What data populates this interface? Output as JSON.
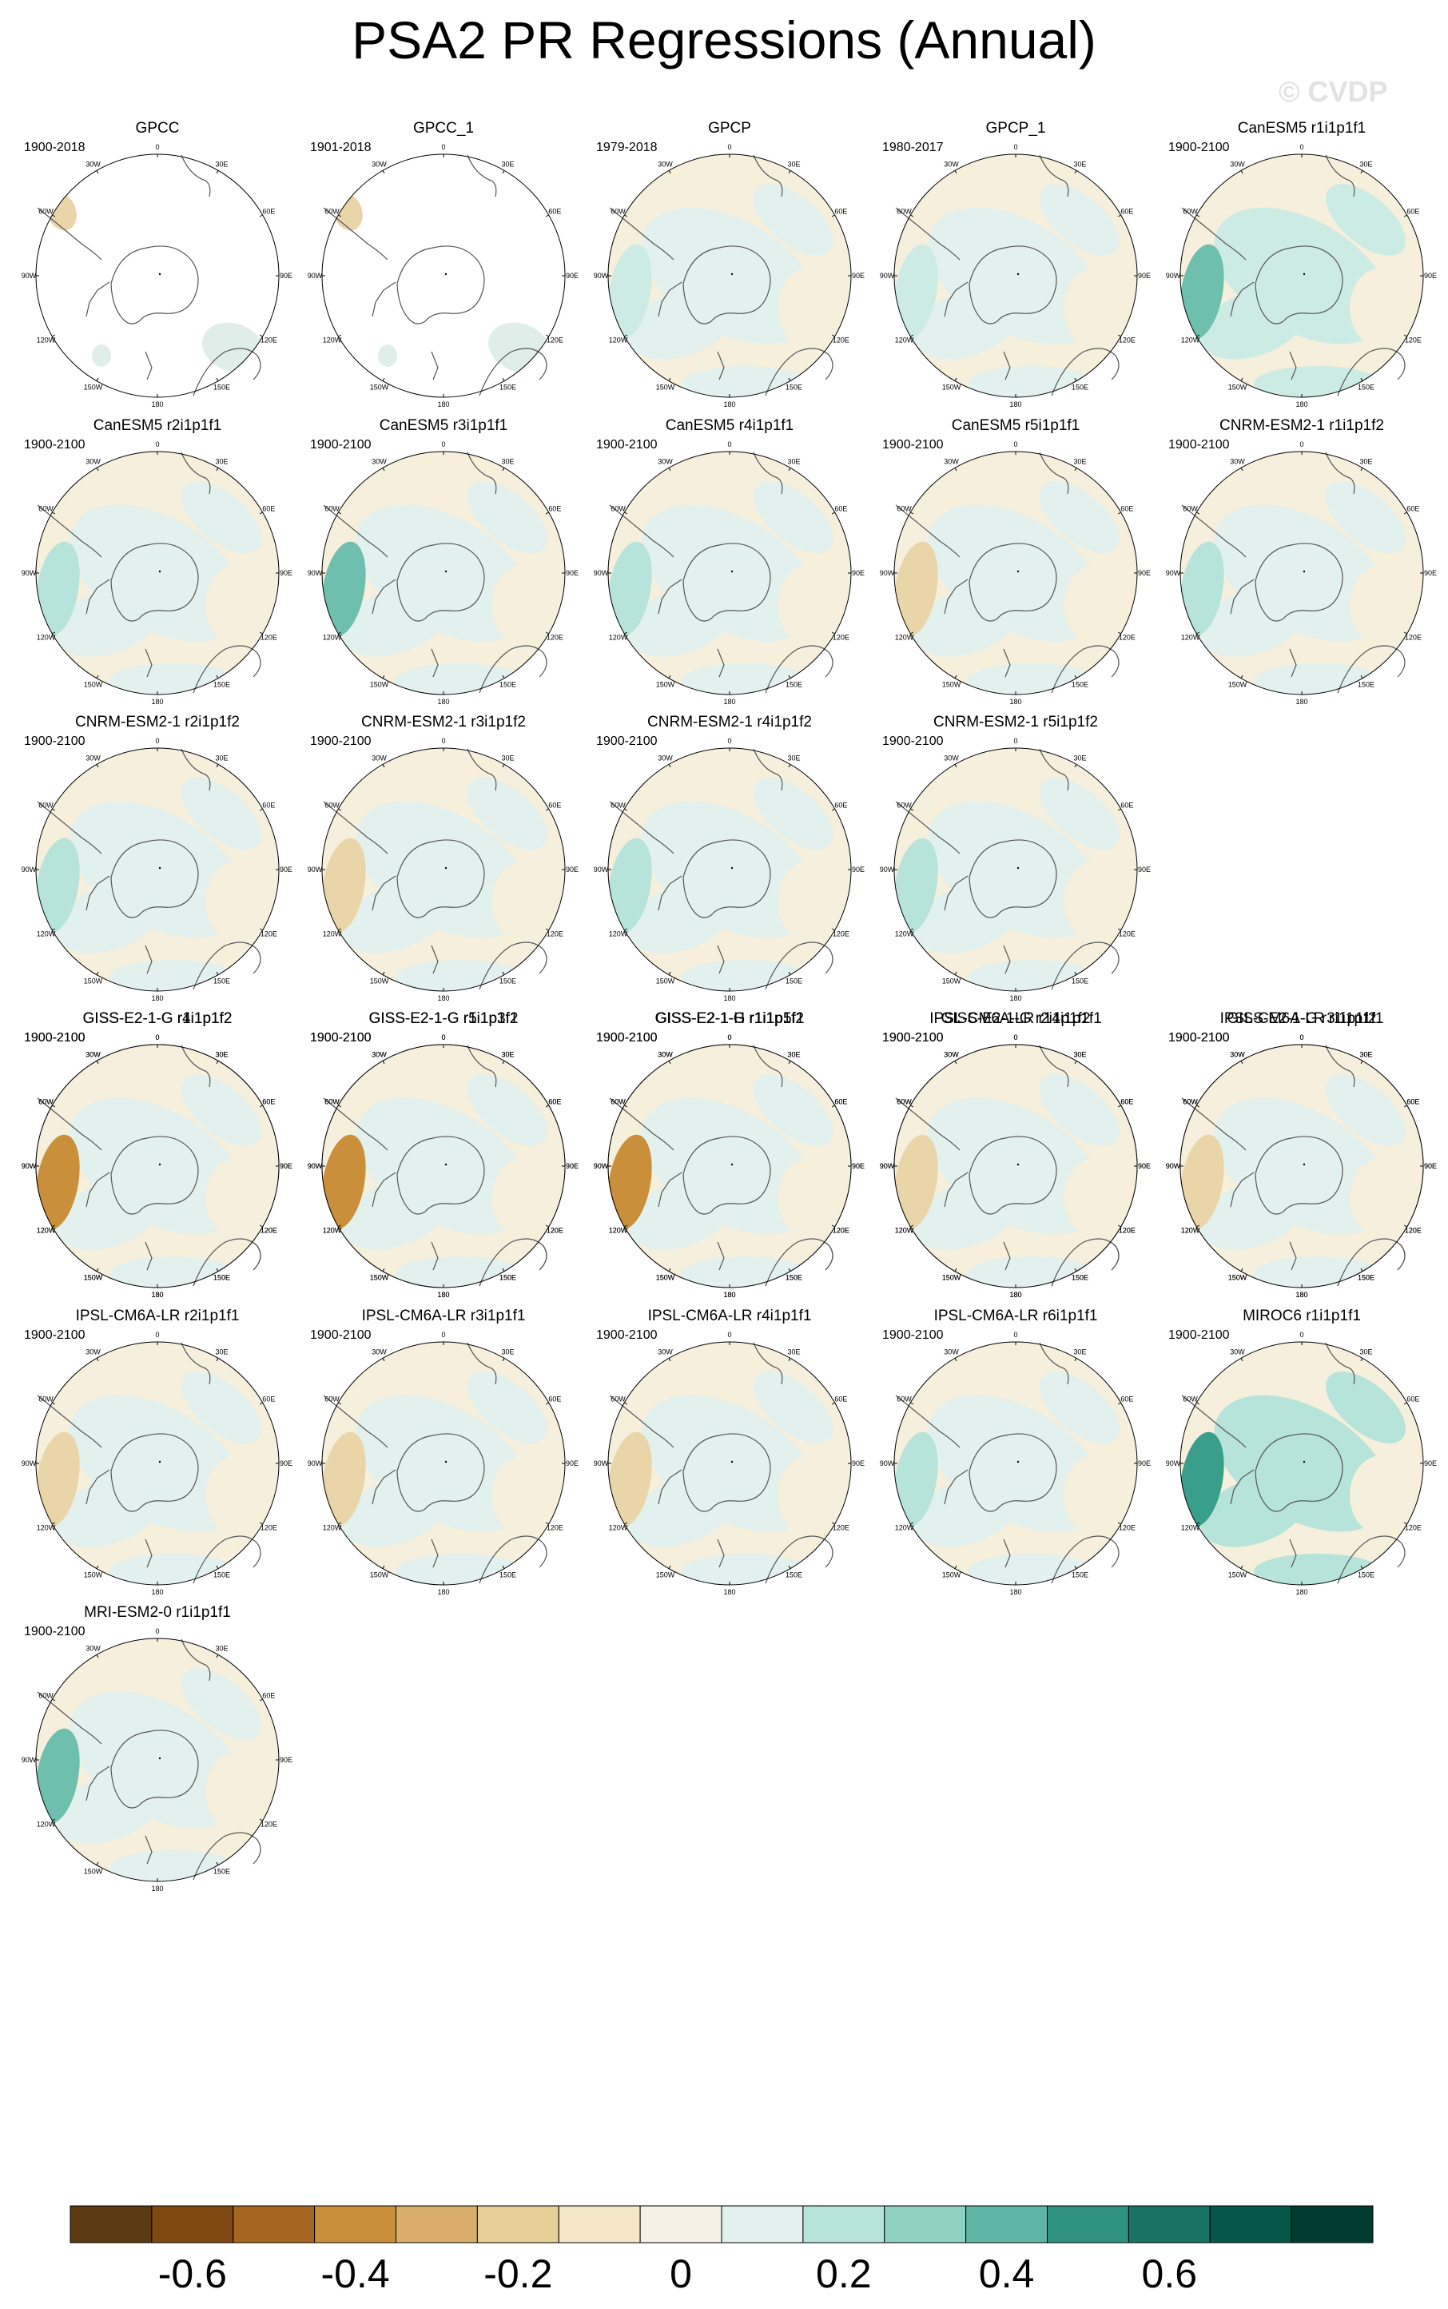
{
  "title": "PSA2 PR Regressions (Annual)",
  "watermark": "© CVDP",
  "lon_labels": [
    "0",
    "30E",
    "60E",
    "90E",
    "120E",
    "150E",
    "180",
    "150W",
    "120W",
    "90W",
    "60W",
    "30W"
  ],
  "panels": [
    {
      "title": "GPCC",
      "years": "1900-2018",
      "style": "gpcc",
      "palette": [
        "#f3eede",
        "#e9d5a8",
        "#dfeee9"
      ]
    },
    {
      "title": "GPCC_1",
      "years": "1901-2018",
      "style": "gpcc",
      "palette": [
        "#f3eede",
        "#e9d5a8",
        "#dfeee9"
      ]
    },
    {
      "title": "GPCP",
      "years": "1979-2018",
      "style": "full",
      "palette": [
        "#f5efdc",
        "#e2f0ee",
        "#cdebe5"
      ]
    },
    {
      "title": "GPCP_1",
      "years": "1980-2017",
      "style": "full",
      "palette": [
        "#f5efdc",
        "#e2f0ee",
        "#cdebe5"
      ]
    },
    {
      "title": "CanESM5 r1i1p1f1",
      "years": "1900-2100",
      "style": "full",
      "palette": [
        "#f5efdc",
        "#cdebe5",
        "#6fbfae"
      ]
    },
    {
      "title": "CanESM5 r2i1p1f1",
      "years": "1900-2100",
      "style": "full",
      "palette": [
        "#f5efdc",
        "#e2f0ee",
        "#b6e3da"
      ]
    },
    {
      "title": "CanESM5 r3i1p1f1",
      "years": "1900-2100",
      "style": "full",
      "palette": [
        "#f5efdc",
        "#e2f0ee",
        "#6fbfae"
      ]
    },
    {
      "title": "CanESM5 r4i1p1f1",
      "years": "1900-2100",
      "style": "full",
      "palette": [
        "#f5efdc",
        "#e2f0ee",
        "#b6e3da"
      ]
    },
    {
      "title": "CanESM5 r5i1p1f1",
      "years": "1900-2100",
      "style": "full",
      "palette": [
        "#f5efdc",
        "#e2f0ee",
        "#e9d5a8"
      ]
    },
    {
      "title": "CNRM-ESM2-1 r1i1p1f2",
      "years": "1900-2100",
      "style": "full",
      "palette": [
        "#f5efdc",
        "#e2f0ee",
        "#b6e3da"
      ]
    },
    {
      "title": "CNRM-ESM2-1 r2i1p1f2",
      "years": "1900-2100",
      "style": "full",
      "palette": [
        "#f5efdc",
        "#e2f0ee",
        "#b6e3da"
      ]
    },
    {
      "title": "CNRM-ESM2-1 r3i1p1f2",
      "years": "1900-2100",
      "style": "full",
      "palette": [
        "#f5efdc",
        "#e2f0ee",
        "#e9d5a8"
      ]
    },
    {
      "title": "CNRM-ESM2-1 r4i1p1f2",
      "years": "1900-2100",
      "style": "full",
      "palette": [
        "#f5efdc",
        "#e2f0ee",
        "#b6e3da"
      ]
    },
    {
      "title": "CNRM-ESM2-1 r5i1p1f2",
      "years": "1900-2100",
      "style": "full",
      "palette": [
        "#f5efdc",
        "#e2f0ee",
        "#b6e3da"
      ]
    },
    {
      "title": "GISS-E2-1-G r1i1p1f2",
      "years": "1900-2100",
      "style": "full",
      "palette": [
        "#f5efdc",
        "#e2f0ee",
        "#d8a95a"
      ]
    },
    {
      "title": "GISS-E2-1-G r1i1p3f1",
      "years": "1900-2100",
      "style": "full",
      "palette": [
        "#f5efdc",
        "#e2f0ee",
        "#d8a95a"
      ]
    },
    {
      "title": "GISS-E2-1-G r1i1p5f1",
      "years": "1900-2100",
      "style": "full",
      "palette": [
        "#f5efdc",
        "#e2f0ee",
        "#d8a95a"
      ]
    },
    {
      "title": "GISS-E2-1-G r2i1p1f2",
      "years": "1900-2100",
      "style": "full",
      "palette": [
        "#f5efdc",
        "#e2f0ee",
        "#d8a95a"
      ]
    },
    {
      "title": "GISS-E2-1-G r3i1p1f2",
      "years": "1900-2100",
      "style": "full",
      "palette": [
        "#f5efdc",
        "#e2f0ee",
        "#d8a95a"
      ]
    },
    {
      "title": "GISS-E2-1-G r4i1p1f2",
      "years": "1900-2100",
      "style": "full",
      "palette": [
        "#f5efdc",
        "#e2f0ee",
        "#c98f3a"
      ]
    },
    {
      "title": "GISS-E2-1-G r5i1p1f2",
      "years": "1900-2100",
      "style": "full",
      "palette": [
        "#f5efdc",
        "#e2f0ee",
        "#c98f3a"
      ]
    },
    {
      "title": "GISS-E2-1-H r1i1p1f2",
      "years": "1900-2100",
      "style": "full",
      "palette": [
        "#f5efdc",
        "#e2f0ee",
        "#c98f3a"
      ]
    },
    {
      "title": "IPSL-CM6A-LR r14i1p1f1",
      "years": "1900-2100",
      "style": "full",
      "palette": [
        "#f5efdc",
        "#e2f0ee",
        "#e9d5a8"
      ]
    },
    {
      "title": "IPSL-CM6A-LR r1i1p1f1",
      "years": "1900-2100",
      "style": "full",
      "palette": [
        "#f5efdc",
        "#e2f0ee",
        "#e9d5a8"
      ]
    },
    {
      "title": "IPSL-CM6A-LR r2i1p1f1",
      "years": "1900-2100",
      "style": "full",
      "palette": [
        "#f5efdc",
        "#e2f0ee",
        "#e9d5a8"
      ]
    },
    {
      "title": "IPSL-CM6A-LR r3i1p1f1",
      "years": "1900-2100",
      "style": "full",
      "palette": [
        "#f5efdc",
        "#e2f0ee",
        "#e9d5a8"
      ]
    },
    {
      "title": "IPSL-CM6A-LR r4i1p1f1",
      "years": "1900-2100",
      "style": "full",
      "palette": [
        "#f5efdc",
        "#e2f0ee",
        "#e9d5a8"
      ]
    },
    {
      "title": "IPSL-CM6A-LR r6i1p1f1",
      "years": "1900-2100",
      "style": "full",
      "palette": [
        "#f5efdc",
        "#e2f0ee",
        "#b6e3da"
      ]
    },
    {
      "title": "MIROC6 r1i1p1f1",
      "years": "1900-2100",
      "style": "full",
      "palette": [
        "#f5efdc",
        "#b6e3da",
        "#3a9e8c"
      ]
    },
    {
      "title": "MRI-ESM2-0 r1i1p1f1",
      "years": "1900-2100",
      "style": "full",
      "palette": [
        "#f5efdc",
        "#e2f0ee",
        "#6fbfae"
      ]
    }
  ],
  "colorbar": {
    "colors": [
      "#5a3a10",
      "#7f4a12",
      "#a5661f",
      "#c98f3a",
      "#d8ae6a",
      "#e7cf98",
      "#f3e7c8",
      "#f5f1e6",
      "#e2f0ee",
      "#b6e3da",
      "#8fd1c3",
      "#5fb5a3",
      "#2f9281",
      "#187363",
      "#06574a",
      "#003c31"
    ],
    "labels": [
      "-0.6",
      "-0.4",
      "-0.2",
      "0",
      "0.2",
      "0.4",
      "0.6"
    ]
  }
}
